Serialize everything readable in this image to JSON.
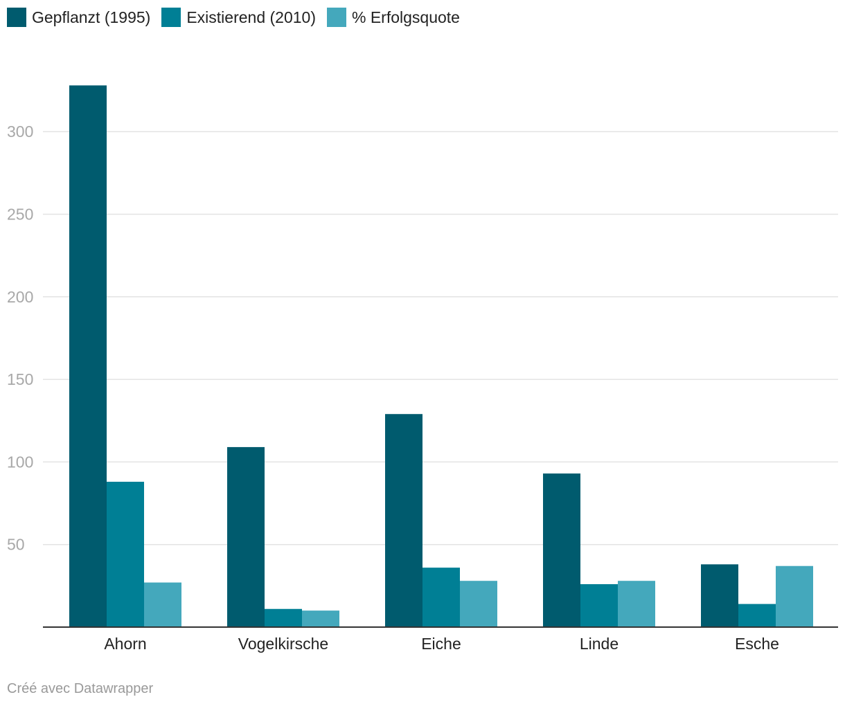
{
  "chart_data": {
    "type": "bar",
    "categories": [
      "Ahorn",
      "Vogelkirsche",
      "Eiche",
      "Linde",
      "Esche"
    ],
    "series": [
      {
        "name": "Gepflanzt (1995)",
        "color": "#005b6e",
        "values": [
          328,
          109,
          129,
          93,
          38
        ]
      },
      {
        "name": "Existierend (2010)",
        "color": "#007f95",
        "values": [
          88,
          11,
          36,
          26,
          14
        ]
      },
      {
        "name": "% Erfolgsquote",
        "color": "#44a8bc",
        "values": [
          27,
          10,
          28,
          28,
          37
        ]
      }
    ],
    "yticks": [
      50,
      100,
      150,
      200,
      250,
      300
    ],
    "ylim": [
      0,
      340
    ],
    "grid": true,
    "legend_position": "top-left",
    "title": "",
    "xlabel": "",
    "ylabel": ""
  },
  "footer": {
    "credit": "Créé avec Datawrapper"
  }
}
